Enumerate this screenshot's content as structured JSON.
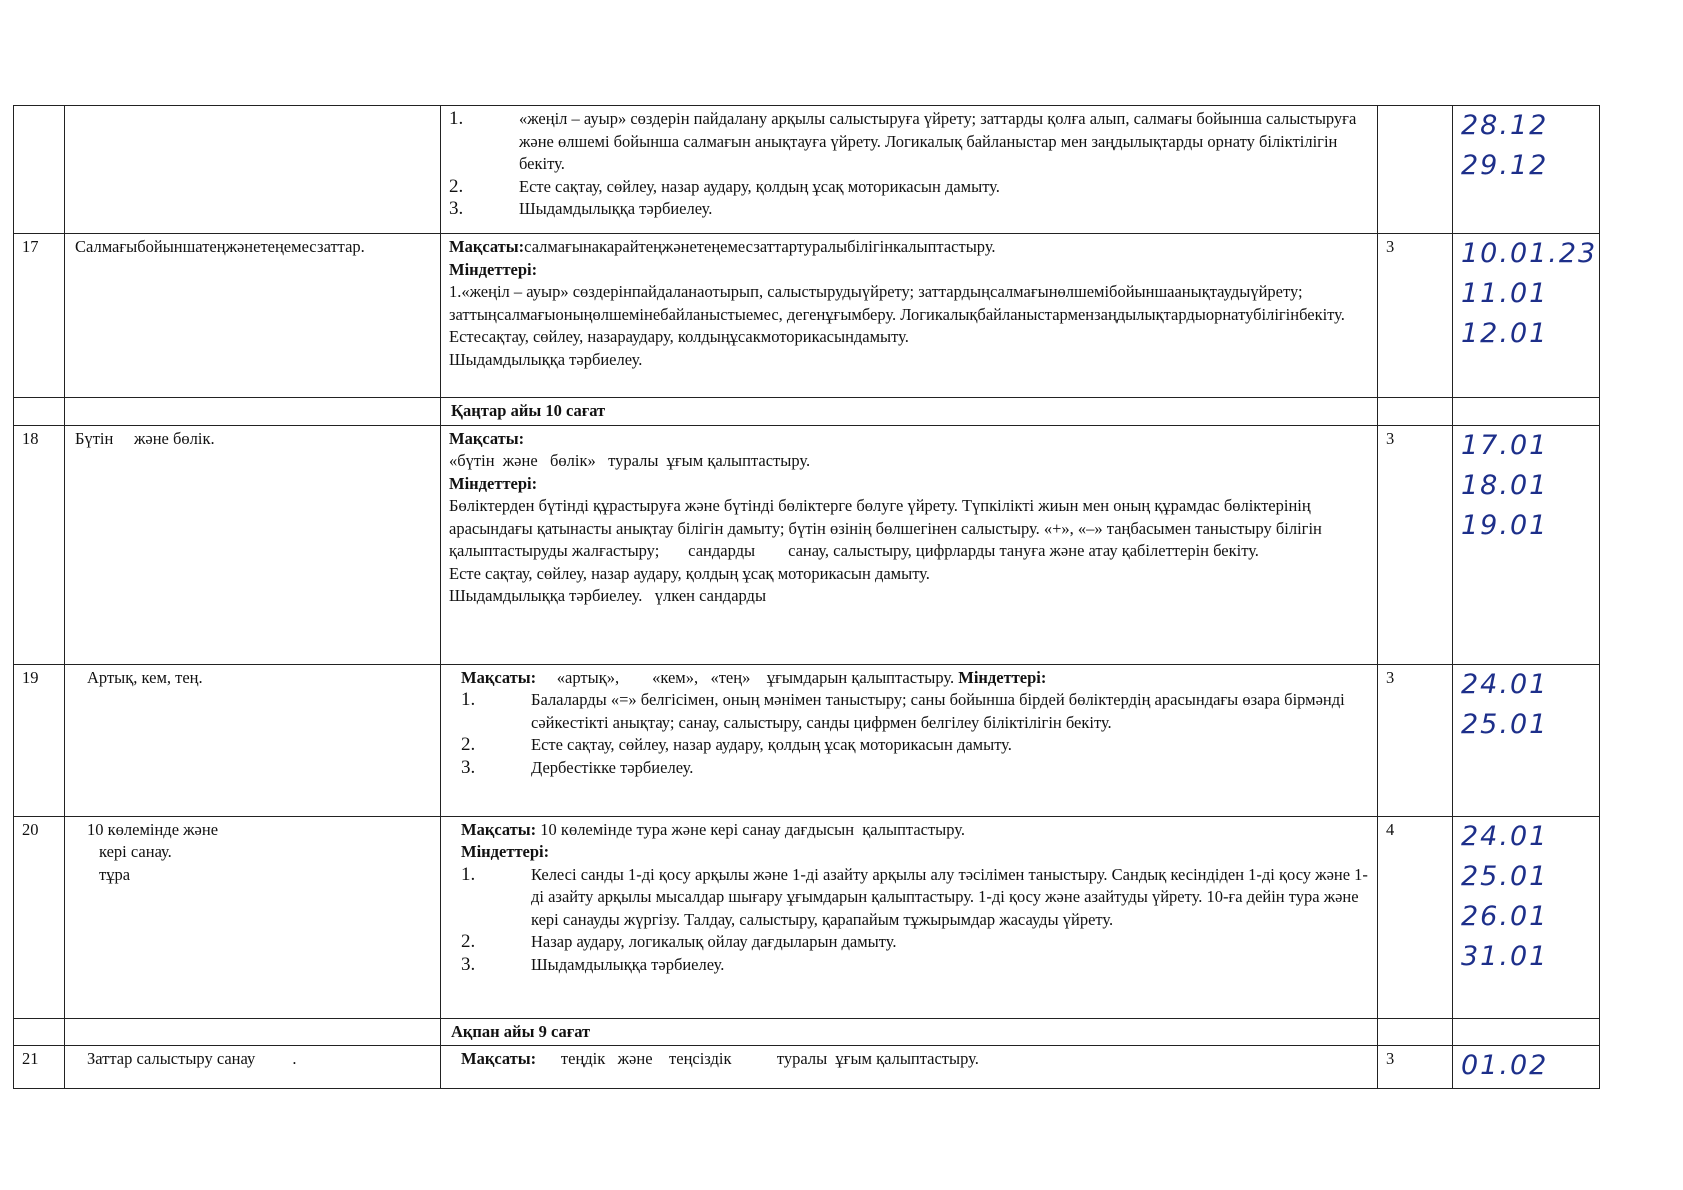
{
  "table": {
    "rows": [
      {
        "content": [
          {
            "n": "1.",
            "text": "«жеңіл – ауыр» сөздерін пайдалану арқылы салыстыруға үйрету; заттарды қолға алып, салмағы бойынша салыстыруға және өлшемі бойынша салмағын анықтауға үйрету. Логикалық байланыстар мен заңдылықтарды орнату біліктілігін бекіту."
          },
          {
            "n": "2.",
            "text": "Есте сақтау, сөйлеу, назар аудару, қолдың ұсақ моторикасын дамыту."
          },
          {
            "n": "3.",
            "text": "Шыдамдылыққа тәрбиелеу."
          }
        ],
        "dates": [
          "28.12",
          "29.12"
        ]
      },
      {
        "num": "17",
        "topic": [
          "Салмағыбойыншатеңжәнетеңемесзаттар."
        ],
        "content": [
          {
            "b": "Мақсаты:",
            "text": "салмағынакарайтеңжәнетеңемесзаттартуралыбілігінкалыптастыру."
          },
          {
            "b": "Міндеттері:"
          },
          {
            "text": "1.«жеңіл – ауыр» сөздерінпайдаланаотырып, салыстырудыүйрету; заттардыңсалмағынөлшемібойыншаанықтаудыүйрету; заттыңсалмағыоныңөлшемінебайланыстыемес, дегенұғымберу. Логикалықбайланыстармензаңдылықтардыорнатубілігінбекіту."
          },
          {
            "text": "Естесақтау, сөйлеу, назараудару, колдыңұсакмоторикасындамыту."
          },
          {
            "text": "Шыдамдылыққа тәрбиелеу."
          }
        ],
        "hours": "3",
        "dates": [
          "10.01.23",
          "11.01",
          "12.01"
        ]
      },
      {
        "month": "Қаңтар айы  10  сағат"
      },
      {
        "num": "18",
        "topic": [
          "Бүтін     және бөлік."
        ],
        "content": [
          {
            "b": "Мақсаты:"
          },
          {
            "text": "«бүтін  және   бөлік»   туралы  ұғым қалыптастыру."
          },
          {
            "b": "Міндеттері:"
          },
          {
            "text": "Бөліктерден бүтінді құрастыруға және бүтінді бөліктерге бөлуге үйрету. Түпкілікті жиын мен оның құрамдас бөліктерінің арасындағы қатынасты анықтау білігін дамыту; бүтін өзінің бөлшегінен салыстыру. «+», «–» таңбасымен таныстыру білігін қалыптастыруды жалғастыру;       сандарды        санау, салыстыру, цифрларды тануға және атау қабілеттерін бекіту."
          },
          {
            "text": "Есте сақтау, сөйлеу, назар аудару, қолдың ұсақ моторикасын дамыту."
          },
          {
            "text": "Шыдамдылыққа тәрбиелеу.   үлкен сандарды"
          }
        ],
        "hours": "3",
        "dates": [
          "17.01",
          "18.01",
          "19.01"
        ]
      },
      {
        "num": "19",
        "topic": [
          "Артық, кем, тең."
        ],
        "content": [
          {
            "b": "Мақсаты:",
            "text": "     «артық»,        «кем»,   «тең»    ұғымдарын қалыптастыру. ",
            "b2": "Міндеттері:"
          },
          {
            "n": "1.",
            "text": "Балаларды «=» белгісімен, оның мәнімен таныстыру; саны бойынша бірдей бөліктердің арасындағы өзара бірмәнді сәйкестікті анықтау; санау, салыстыру, санды цифрмен белгілеу біліктілігін бекіту."
          },
          {
            "n": "2.",
            "text": "Есте сақтау, сөйлеу, назар аудару, қолдың ұсақ моторикасын дамыту."
          },
          {
            "n": "3.",
            "text": "Дербестікке тәрбиелеу."
          }
        ],
        "hours": "3",
        "dates": [
          "24.01",
          "25.01"
        ]
      },
      {
        "num": "20",
        "topic": [
          "10 көлемінде және",
          "кері санау.",
          "тұра"
        ],
        "content": [
          {
            "b": "Мақсаты:",
            "text": " 10 көлемінде тура және кері санау дағдысын  қалыптастыру."
          },
          {
            "b": "Міндеттері:"
          },
          {
            "n": "1.",
            "text": "Келесі санды  1-ді қосу арқылы және 1-ді азайту арқылы алу тәсілімен таныстыру. Сандық кесіндіден 1-ді қосу және 1-ді азайту арқылы мысалдар шығару ұғымдарын қалыптастыру. 1-ді қосу және азайтуды үйрету. 10-ға дейін тура және кері санауды жүргізу. Талдау, салыстыру, қарапайым тұжырымдар жасауды үйрету."
          },
          {
            "n": "2.",
            "text": "Назар аудару, логикалық ойлау дағдыларын дамыту."
          },
          {
            "n": "3.",
            "text": "Шыдамдылыққа тәрбиелеу."
          }
        ],
        "hours": "4",
        "dates": [
          "24.01",
          "25.01",
          "26.01",
          "31.01"
        ]
      },
      {
        "month": "Ақпан айы  9 сағат"
      },
      {
        "num": "21",
        "topic": [
          "Заттар салыстыру санау         ."
        ],
        "content": [
          {
            "b": "Мақсаты:",
            "text": "      теңдік   және    теңсіздік           туралы  ұғым қалыптастыру."
          }
        ],
        "hours": "3",
        "dates": [
          "01.02"
        ]
      }
    ]
  }
}
